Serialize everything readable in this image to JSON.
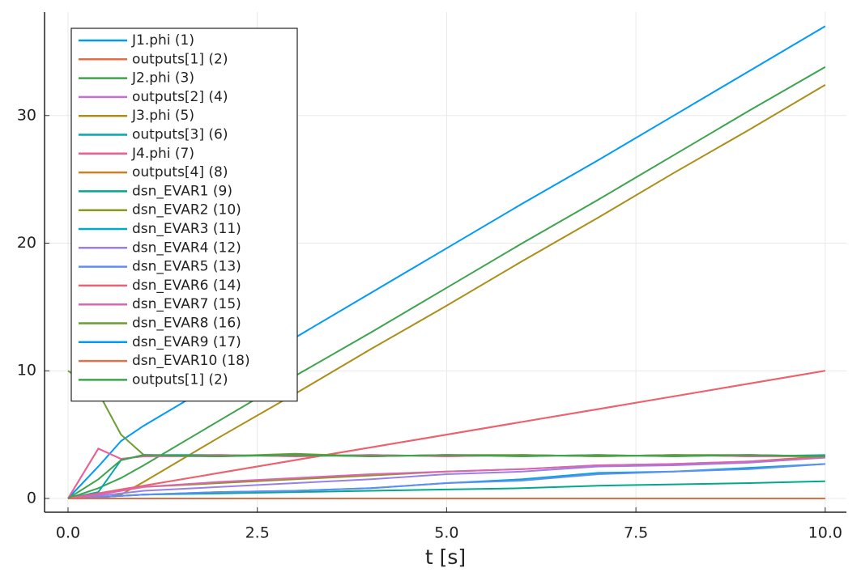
{
  "chart_data": {
    "type": "line",
    "x_label": "t [s]",
    "x": [
      0,
      0.4,
      0.7,
      1,
      2,
      3,
      4,
      5,
      6,
      7,
      8,
      9,
      10
    ],
    "xlim": [
      -0.31,
      10.28
    ],
    "ylim": [
      -1.08,
      38.1
    ],
    "xticks": [
      {
        "value": 0,
        "label": "0.0"
      },
      {
        "value": 2.5,
        "label": "2.5"
      },
      {
        "value": 5,
        "label": "5.0"
      },
      {
        "value": 7.5,
        "label": "7.5"
      },
      {
        "value": 10,
        "label": "10.0"
      }
    ],
    "yticks": [
      0,
      10,
      20,
      30
    ],
    "grid": true,
    "legend": "top-left",
    "series": [
      {
        "name": "J1.phi (1)",
        "color": "#009af9",
        "values": [
          0,
          2.5,
          4.5,
          5.7,
          9.2,
          12.6,
          16.1,
          19.6,
          23.1,
          26.5,
          30,
          33.5,
          37
        ]
      },
      {
        "name": "outputs[1] (2)",
        "color": "#e26f46",
        "values": [
          0,
          0,
          0,
          0,
          0,
          0,
          0,
          0,
          0,
          0,
          0,
          0,
          0
        ]
      },
      {
        "name": "J2.phi (3)",
        "color": "#3da44d",
        "values": [
          0,
          0.8,
          1.6,
          2.6,
          6.1,
          9.6,
          13,
          16.5,
          20,
          23.4,
          26.9,
          30.4,
          33.8
        ]
      },
      {
        "name": "outputs[2] (4)",
        "color": "#c271d2",
        "values": [
          0,
          3.9,
          3.1,
          3.3,
          3.3,
          3.4,
          3.3,
          3.4,
          3.3,
          3.4,
          3.3,
          3.4,
          3.3
        ]
      },
      {
        "name": "J3.phi (5)",
        "color": "#ac8e18",
        "values": [
          0,
          0,
          0.3,
          1.3,
          4.8,
          8.2,
          11.7,
          15.1,
          18.6,
          22,
          25.5,
          28.9,
          32.4
        ]
      },
      {
        "name": "outputs[3] (6)",
        "color": "#00a9ad",
        "values": [
          0,
          0.5,
          3,
          3.4,
          3.4,
          3.3,
          3.4,
          3.3,
          3.4,
          3.3,
          3.4,
          3.3,
          3.4
        ]
      },
      {
        "name": "J4.phi (7)",
        "color": "#ed5e93",
        "values": [
          0,
          3.9,
          3.1,
          3.3,
          3.4,
          3.3,
          3.4,
          3.3,
          3.4,
          3.3,
          3.4,
          3.3,
          3.3
        ]
      },
      {
        "name": "outputs[4] (8)",
        "color": "#c68225",
        "values": [
          0,
          0.4,
          0.7,
          1,
          2,
          3,
          4,
          5,
          6,
          7,
          8,
          9,
          10
        ]
      },
      {
        "name": "dsn_EVAR1 (9)",
        "color": "#00a98d",
        "values": [
          0,
          0.1,
          0.2,
          0.3,
          0.4,
          0.5,
          0.6,
          0.7,
          0.8,
          1,
          1.1,
          1.2,
          1.35
        ]
      },
      {
        "name": "dsn_EVAR2 (10)",
        "color": "#8e971e",
        "values": [
          0,
          0.3,
          0.6,
          0.9,
          1.2,
          1.5,
          1.8,
          2.1,
          2.3,
          2.6,
          2.7,
          2.9,
          3.3
        ]
      },
      {
        "name": "dsn_EVAR3 (11)",
        "color": "#00a9cd",
        "values": [
          0,
          0.1,
          0.2,
          0.3,
          0.5,
          0.6,
          0.8,
          1.2,
          1.5,
          2,
          2.1,
          2.4,
          2.7
        ]
      },
      {
        "name": "dsn_EVAR4 (12)",
        "color": "#9b7fe9",
        "values": [
          0,
          0.2,
          0.4,
          0.6,
          0.9,
          1.2,
          1.5,
          1.9,
          2.1,
          2.5,
          2.6,
          2.8,
          3.2
        ]
      },
      {
        "name": "dsn_EVAR5 (13)",
        "color": "#618df6",
        "values": [
          0,
          0.1,
          0.2,
          0.3,
          0.5,
          0.6,
          0.8,
          1.2,
          1.4,
          1.9,
          2.1,
          2.3,
          2.7
        ]
      },
      {
        "name": "dsn_EVAR6 (14)",
        "color": "#f05f73",
        "values": [
          0,
          0.4,
          0.7,
          1,
          2,
          3,
          4,
          5,
          6,
          7,
          8,
          9,
          10
        ]
      },
      {
        "name": "dsn_EVAR7 (15)",
        "color": "#dd64b5",
        "values": [
          0,
          0.3,
          0.6,
          0.9,
          1.3,
          1.6,
          1.9,
          2.1,
          2.3,
          2.6,
          2.7,
          2.9,
          3.2
        ]
      },
      {
        "name": "dsn_EVAR8 (16)",
        "color": "#6b9e32",
        "values": [
          10,
          8.3,
          5,
          3.4,
          3.3,
          3.5,
          3.3,
          3.4,
          3.4,
          3.3,
          3.4,
          3.4,
          3.3
        ]
      },
      {
        "name": "dsn_EVAR9 (17)",
        "color": "#009af9",
        "values": [
          0,
          0,
          0,
          0,
          0,
          0,
          0,
          0,
          0,
          0,
          0,
          0,
          0
        ]
      },
      {
        "name": "dsn_EVAR10 (18)",
        "color": "#e26f46",
        "values": [
          0,
          0,
          0,
          0,
          0,
          0,
          0,
          0,
          0,
          0,
          0,
          0,
          0
        ]
      },
      {
        "name": "outputs[1] (2)",
        "color": "#3da44d",
        "values": [
          0,
          1.5,
          3,
          3.4,
          3.3,
          3.4,
          3.3,
          3.4,
          3.3,
          3.4,
          3.3,
          3.4,
          3.3
        ]
      }
    ]
  }
}
